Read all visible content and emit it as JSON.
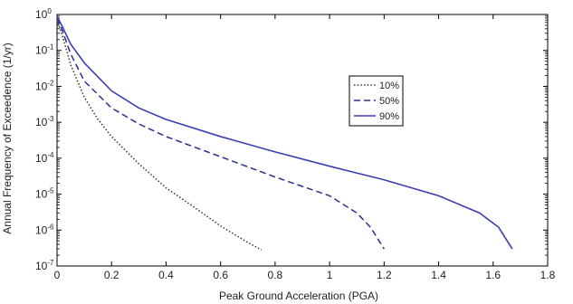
{
  "chart_data": {
    "type": "line",
    "xlabel": "Peak Ground Acceleration (PGA)",
    "ylabel": "Annual Frequency of Exceedence (1/yr)",
    "xlim": [
      0,
      1.8
    ],
    "ylim_log10": [
      -7,
      0
    ],
    "yscale": "log",
    "grid": false,
    "legend_position": "upper-middle-right",
    "xticks": [
      "0",
      "0.2",
      "0.4",
      "0.6",
      "0.8",
      "1",
      "1.2",
      "1.4",
      "1.6",
      "1.8"
    ],
    "ytick_exponents": [
      "0",
      "-1",
      "-2",
      "-3",
      "-4",
      "-5",
      "-6",
      "-7"
    ],
    "series": [
      {
        "name": "10%",
        "color": "#333333",
        "style": "dotted",
        "points": [
          [
            0.0,
            0.7
          ],
          [
            0.02,
            0.25
          ],
          [
            0.05,
            0.04
          ],
          [
            0.1,
            0.005
          ],
          [
            0.15,
            0.0012
          ],
          [
            0.2,
            0.0004
          ],
          [
            0.3,
            7e-05
          ],
          [
            0.4,
            1.5e-05
          ],
          [
            0.5,
            4.5e-06
          ],
          [
            0.6,
            1.3e-06
          ],
          [
            0.7,
            4.5e-07
          ],
          [
            0.75,
            2.8e-07
          ]
        ]
      },
      {
        "name": "50%",
        "color": "#2a2f8f",
        "style": "dashed",
        "points": [
          [
            0.0,
            0.8
          ],
          [
            0.02,
            0.35
          ],
          [
            0.05,
            0.08
          ],
          [
            0.1,
            0.014
          ],
          [
            0.2,
            0.0025
          ],
          [
            0.3,
            0.0009
          ],
          [
            0.4,
            0.0004
          ],
          [
            0.6,
            0.00011
          ],
          [
            0.8,
            3e-05
          ],
          [
            1.0,
            9e-06
          ],
          [
            1.1,
            3e-06
          ],
          [
            1.15,
            1.2e-06
          ],
          [
            1.2,
            3e-07
          ]
        ]
      },
      {
        "name": "90%",
        "color": "#3b3fb0",
        "style": "solid",
        "points": [
          [
            0.0,
            0.9
          ],
          [
            0.02,
            0.45
          ],
          [
            0.05,
            0.15
          ],
          [
            0.1,
            0.045
          ],
          [
            0.2,
            0.0075
          ],
          [
            0.3,
            0.0025
          ],
          [
            0.4,
            0.0012
          ],
          [
            0.6,
            0.0004
          ],
          [
            0.8,
            0.00015
          ],
          [
            1.0,
            6e-05
          ],
          [
            1.2,
            2.5e-05
          ],
          [
            1.4,
            9e-06
          ],
          [
            1.55,
            3e-06
          ],
          [
            1.62,
            1.2e-06
          ],
          [
            1.67,
            3e-07
          ]
        ]
      }
    ]
  }
}
